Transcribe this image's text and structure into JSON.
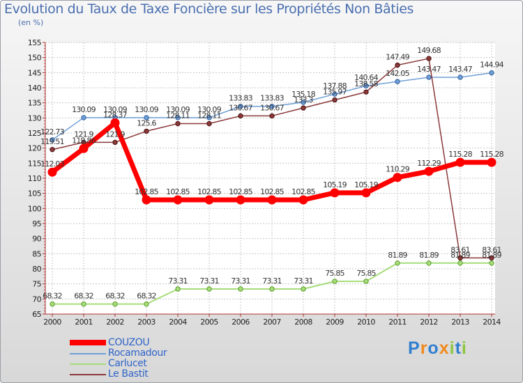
{
  "chart_data": {
    "type": "line",
    "title": "Evolution du Taux de Taxe Foncière sur les Propriétés Non Bâties",
    "ylabel": "(en %)",
    "xlabel": "",
    "x": [
      "2000",
      "2001",
      "2002",
      "2003",
      "2004",
      "2005",
      "2006",
      "2007",
      "2008",
      "2009",
      "2010",
      "2011",
      "2012",
      "2013",
      "2014"
    ],
    "ylim": [
      65,
      155
    ],
    "yticks": [
      "65",
      "70",
      "75",
      "80",
      "85",
      "90",
      "95",
      "100",
      "105",
      "110",
      "115",
      "120",
      "125",
      "130",
      "135",
      "140",
      "145",
      "150",
      "155"
    ],
    "grid": true,
    "series": [
      {
        "name": "COUZOU",
        "color": "#ff0000",
        "values": [
          112.03,
          119.86,
          128.37,
          102.85,
          102.85,
          102.85,
          102.85,
          102.85,
          102.85,
          105.19,
          105.19,
          110.29,
          112.29,
          115.28,
          115.28
        ],
        "labels": [
          "112.03",
          "119.86",
          "128.37",
          "102.85",
          "102.85",
          "102.85",
          "102.85",
          "102.85",
          "102.85",
          "105.19",
          "105.19",
          "110.29",
          "112.29",
          "115.28",
          "115.28"
        ]
      },
      {
        "name": "Rocamadour",
        "color": "#6f9fd6",
        "values": [
          122.73,
          130.09,
          130.09,
          130.09,
          130.09,
          130.09,
          133.83,
          133.83,
          135.18,
          137.88,
          140.64,
          142.05,
          143.47,
          143.47,
          144.94
        ],
        "labels": [
          "122.73",
          "130.09",
          "130.09",
          "130.09",
          "130.09",
          "130.09",
          "133.83",
          "133.83",
          "135.18",
          "137.88",
          "140.64",
          "142.05",
          "143.47",
          "143.47",
          "144.94"
        ]
      },
      {
        "name": "Carlucet",
        "color": "#a6dd7a",
        "values": [
          68.32,
          68.32,
          68.32,
          68.32,
          73.31,
          73.31,
          73.31,
          73.31,
          73.31,
          75.85,
          75.85,
          81.89,
          81.89,
          81.89,
          81.89
        ],
        "labels": [
          "68.32",
          "68.32",
          "68.32",
          "68.32",
          "73.31",
          "73.31",
          "73.31",
          "73.31",
          "73.31",
          "75.85",
          "75.85",
          "81.89",
          "81.89",
          "81.89",
          "81.89"
        ]
      },
      {
        "name": "Le Bastit",
        "color": "#8a3838",
        "values": [
          119.51,
          121.9,
          121.9,
          125.6,
          128.11,
          128.11,
          130.67,
          130.67,
          133.3,
          135.97,
          138.58,
          147.49,
          149.68,
          83.61,
          83.61
        ],
        "labels": [
          "119.51",
          "121.9",
          "121.9",
          "125.6",
          "128.11",
          "128.11",
          "130.67",
          "130.67",
          "133.3",
          "135.97",
          "138.58",
          "147.49",
          "149.68",
          "83.61",
          "83.61"
        ]
      }
    ]
  },
  "legend": [
    {
      "name": "COUZOU",
      "color": "#ff0000"
    },
    {
      "name": "Rocamadour",
      "color": "#6f9fd6"
    },
    {
      "name": "Carlucet",
      "color": "#a6dd7a"
    },
    {
      "name": "Le Bastit",
      "color": "#8a3838"
    }
  ],
  "logo": {
    "text": "Proxiti",
    "letters": [
      "P",
      "r",
      "o",
      "x",
      "i",
      "t",
      "i"
    ],
    "colors": [
      "#2f7fd0",
      "#f08a1c",
      "#2f7fd0",
      "#f08a1c",
      "#8cc63f",
      "#2f7fd0",
      "#8cc63f"
    ]
  }
}
